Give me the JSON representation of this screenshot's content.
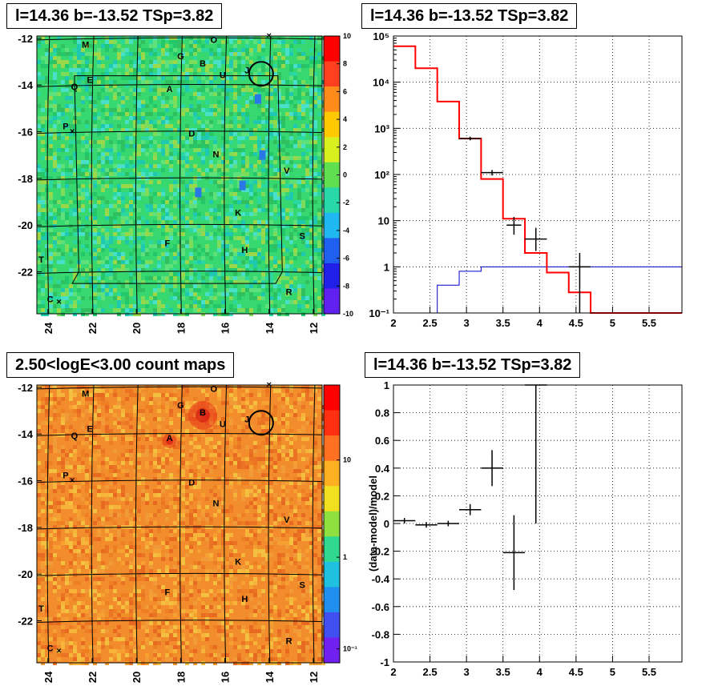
{
  "panels": {
    "top_left_title": "l=14.36 b=-13.52 TSp=3.82",
    "top_right_title": "l=14.36 b=-13.52 TSp=3.82",
    "bottom_left_title": "2.50<logE<3.00 count maps",
    "bottom_right_title": "l=14.36 b=-13.52 TSp=3.82"
  },
  "colors": {
    "model_red": "#ff0000",
    "model_blue": "#0000cc",
    "data_black": "#000000",
    "residual_bg": "#38d870",
    "count_bg": "#f28c2c"
  },
  "chart_data": [
    {
      "type": "heatmap",
      "panel": "top-left",
      "title": "l=14.36 b=-13.52 TSp=3.82",
      "x_ticks": [
        "24",
        "22",
        "20",
        "18",
        "16",
        "14",
        "12"
      ],
      "x_range": [
        24.5,
        11.6
      ],
      "y_ticks": [
        "-12",
        "-14",
        "-16",
        "-18",
        "-20",
        "-22"
      ],
      "y_range": [
        -23.8,
        -11.9
      ],
      "colorbar": {
        "min": -10,
        "max": 10,
        "ticks": [
          "10",
          "8",
          "6",
          "4",
          "2",
          "0",
          "-2",
          "-4",
          "-6",
          "-8",
          "-10"
        ]
      },
      "sources": [
        {
          "name": "M",
          "l": 22.3,
          "b": -12.4
        },
        {
          "name": "O",
          "l": 16.5,
          "b": -12.2
        },
        {
          "name": "G",
          "l": 18.0,
          "b": -12.9
        },
        {
          "name": "B",
          "l": 17.0,
          "b": -13.2
        },
        {
          "name": "J",
          "l": 15.0,
          "b": -13.5
        },
        {
          "name": "U",
          "l": 16.1,
          "b": -13.7
        },
        {
          "name": "E",
          "l": 22.1,
          "b": -13.9
        },
        {
          "name": "Q",
          "l": 22.8,
          "b": -14.2
        },
        {
          "name": "A",
          "l": 18.5,
          "b": -14.3
        },
        {
          "name": "P",
          "l": 23.2,
          "b": -15.9
        },
        {
          "name": "D",
          "l": 17.5,
          "b": -16.2
        },
        {
          "name": "N",
          "l": 16.4,
          "b": -17.1
        },
        {
          "name": "V",
          "l": 13.2,
          "b": -17.8
        },
        {
          "name": "K",
          "l": 15.4,
          "b": -19.6
        },
        {
          "name": "S",
          "l": 12.5,
          "b": -20.6
        },
        {
          "name": "F",
          "l": 18.6,
          "b": -20.9
        },
        {
          "name": "H",
          "l": 15.1,
          "b": -21.2
        },
        {
          "name": "T",
          "l": 24.3,
          "b": -21.6
        },
        {
          "name": "R",
          "l": 13.1,
          "b": -23.0
        },
        {
          "name": "C",
          "l": 23.9,
          "b": -23.3
        }
      ],
      "circle": {
        "l": 14.36,
        "b": -13.52
      }
    },
    {
      "type": "line",
      "panel": "top-right",
      "title": "l=14.36 b=-13.52 TSp=3.82",
      "x_ticks": [
        "2",
        "2.5",
        "3",
        "3.5",
        "4",
        "4.5",
        "5",
        "5.5"
      ],
      "xlim": [
        2.0,
        5.95
      ],
      "y_ticks": [
        "10⁻¹",
        "1",
        "10",
        "10²",
        "10³",
        "10⁴",
        "10⁵"
      ],
      "ylim": [
        0.1,
        100000
      ],
      "yscale": "log",
      "grid": true,
      "series": [
        {
          "role": "total model",
          "edges": [
            2.0,
            2.3,
            2.6,
            2.9,
            3.2,
            3.5,
            3.8,
            4.1,
            4.4,
            4.7,
            5.0,
            5.3,
            5.6,
            5.95
          ],
          "values": [
            60000,
            20000,
            3800,
            600,
            80,
            11,
            2,
            0.75,
            0.28,
            0.1,
            0.1,
            0.1,
            0.1
          ]
        },
        {
          "role": "source model",
          "edges": [
            2.0,
            2.3,
            2.6,
            2.9,
            3.2,
            3.5,
            3.8,
            4.1,
            4.4,
            4.7,
            5.0,
            5.3,
            5.6,
            5.95
          ],
          "values": [
            0.1,
            0.1,
            0.4,
            0.8,
            1.0,
            1.0,
            1.0,
            1.0,
            1.0,
            1.0,
            1.0,
            1.0,
            1.0
          ]
        },
        {
          "role": "data",
          "points": [
            {
              "x": 3.05,
              "y": 600,
              "x_err": 0.15,
              "y_lo": 550,
              "y_hi": 660
            },
            {
              "x": 3.35,
              "y": 110,
              "x_err": 0.15,
              "y_lo": 95,
              "y_hi": 125
            },
            {
              "x": 3.65,
              "y": 8,
              "x_err": 0.1,
              "y_lo": 5,
              "y_hi": 12
            },
            {
              "x": 3.95,
              "y": 4,
              "x_err": 0.15,
              "y_lo": 2.2,
              "y_hi": 7
            },
            {
              "x": 4.55,
              "y": 1,
              "x_err": 0.15,
              "y_lo": 0.1,
              "y_hi": 2
            }
          ]
        }
      ]
    },
    {
      "type": "heatmap",
      "panel": "bottom-left",
      "title": "2.50<logE<3.00 count maps",
      "x_ticks": [
        "24",
        "22",
        "20",
        "18",
        "16",
        "14",
        "12"
      ],
      "x_range": [
        24.5,
        11.6
      ],
      "y_ticks": [
        "-12",
        "-14",
        "-16",
        "-18",
        "-20",
        "-22"
      ],
      "y_range": [
        -23.8,
        -11.9
      ],
      "colorbar": {
        "scale": "log",
        "ticks": [
          "10",
          "1",
          "10⁻¹"
        ]
      },
      "sources": [
        {
          "name": "M",
          "l": 22.3,
          "b": -12.4
        },
        {
          "name": "O",
          "l": 16.5,
          "b": -12.2
        },
        {
          "name": "G",
          "l": 18.0,
          "b": -12.9
        },
        {
          "name": "B",
          "l": 17.0,
          "b": -13.2
        },
        {
          "name": "J",
          "l": 15.0,
          "b": -13.5
        },
        {
          "name": "U",
          "l": 16.1,
          "b": -13.7
        },
        {
          "name": "E",
          "l": 22.1,
          "b": -13.9
        },
        {
          "name": "Q",
          "l": 22.8,
          "b": -14.2
        },
        {
          "name": "A",
          "l": 18.5,
          "b": -14.3
        },
        {
          "name": "P",
          "l": 23.2,
          "b": -15.9
        },
        {
          "name": "D",
          "l": 17.5,
          "b": -16.2
        },
        {
          "name": "N",
          "l": 16.4,
          "b": -17.1
        },
        {
          "name": "V",
          "l": 13.2,
          "b": -17.8
        },
        {
          "name": "K",
          "l": 15.4,
          "b": -19.6
        },
        {
          "name": "S",
          "l": 12.5,
          "b": -20.6
        },
        {
          "name": "F",
          "l": 18.6,
          "b": -20.9
        },
        {
          "name": "H",
          "l": 15.1,
          "b": -21.2
        },
        {
          "name": "T",
          "l": 24.3,
          "b": -21.6
        },
        {
          "name": "R",
          "l": 13.1,
          "b": -23.0
        },
        {
          "name": "C",
          "l": 23.9,
          "b": -23.3
        }
      ],
      "circle": {
        "l": 14.36,
        "b": -13.52
      }
    },
    {
      "type": "scatter",
      "panel": "bottom-right",
      "title": "l=14.36 b=-13.52 TSp=3.82",
      "ylabel": "(data-model)/model",
      "x_ticks": [
        "2",
        "2.5",
        "3",
        "3.5",
        "4",
        "4.5",
        "5",
        "5.5"
      ],
      "xlim": [
        2.0,
        5.95
      ],
      "y_ticks": [
        "1",
        "0.8",
        "0.6",
        "0.4",
        "0.2",
        "0",
        "-0.2",
        "-0.4",
        "-0.6",
        "-0.8",
        "-1"
      ],
      "ylim": [
        -1,
        1
      ],
      "grid": true,
      "points": [
        {
          "x": 2.15,
          "y": 0.02,
          "x_err": 0.15,
          "y_err": 0.02
        },
        {
          "x": 2.45,
          "y": -0.01,
          "x_err": 0.15,
          "y_err": 0.02
        },
        {
          "x": 2.75,
          "y": 0.0,
          "x_err": 0.15,
          "y_err": 0.02
        },
        {
          "x": 3.05,
          "y": 0.1,
          "x_err": 0.15,
          "y_err": 0.04
        },
        {
          "x": 3.35,
          "y": 0.4,
          "x_err": 0.15,
          "y_err": 0.13
        },
        {
          "x": 3.65,
          "y": -0.21,
          "x_err": 0.15,
          "y_err": 0.27
        },
        {
          "x": 3.95,
          "y": 1.0,
          "x_err": 0.15,
          "y_err": 1.0
        }
      ]
    }
  ]
}
